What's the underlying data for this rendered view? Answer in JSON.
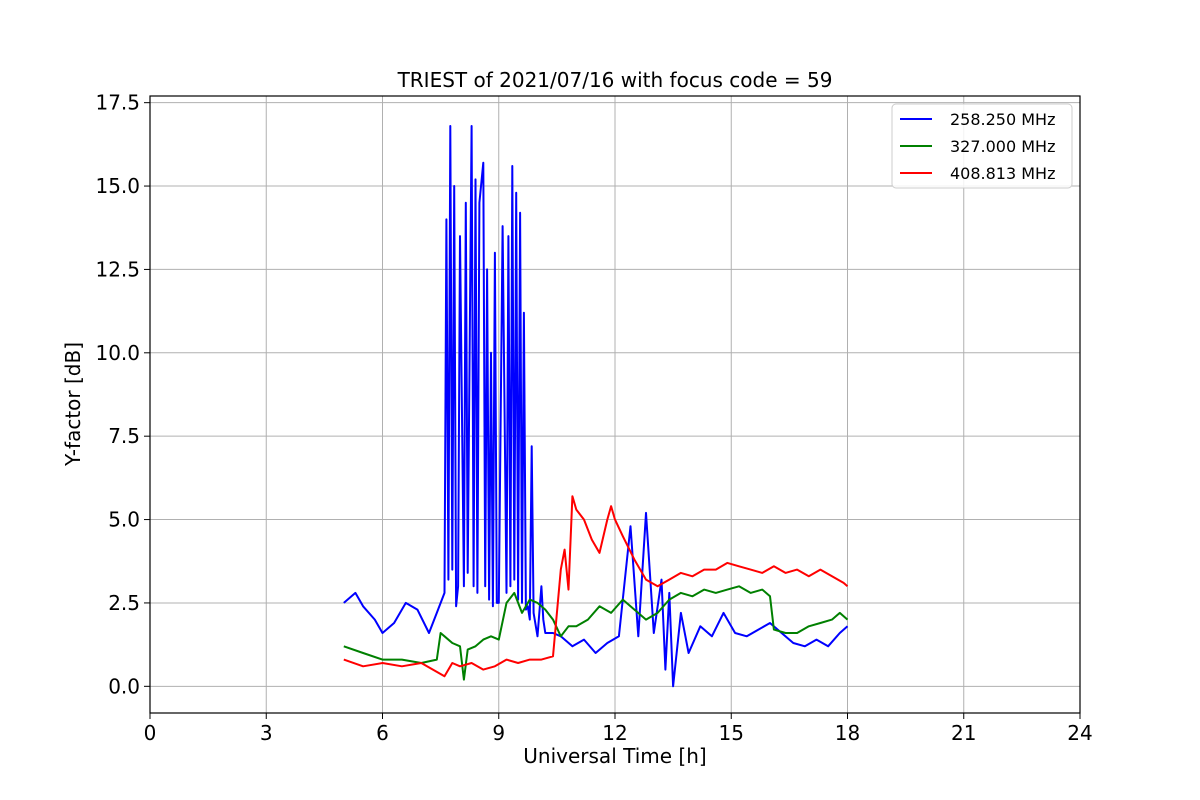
{
  "chart_data": {
    "type": "line",
    "title": "TRIEST of 2021/07/16 with focus code = 59",
    "xlabel": "Universal Time [h]",
    "ylabel": "Y-factor [dB]",
    "xlim": [
      0,
      24
    ],
    "ylim": [
      -0.8,
      17.7
    ],
    "xticks": [
      0,
      3,
      6,
      9,
      12,
      15,
      18,
      21,
      24
    ],
    "yticks": [
      0.0,
      2.5,
      5.0,
      7.5,
      10.0,
      12.5,
      15.0,
      17.5
    ],
    "xtick_labels": [
      "0",
      "3",
      "6",
      "9",
      "12",
      "15",
      "18",
      "21",
      "24"
    ],
    "ytick_labels": [
      "0.0",
      "2.5",
      "5.0",
      "7.5",
      "10.0",
      "12.5",
      "15.0",
      "17.5"
    ],
    "grid": true,
    "legend_position": "top-right",
    "series": [
      {
        "name": "258.250 MHz",
        "color": "#0000ff",
        "x": [
          5.0,
          5.3,
          5.5,
          5.8,
          6.0,
          6.3,
          6.6,
          6.9,
          7.2,
          7.4,
          7.6,
          7.65,
          7.7,
          7.75,
          7.8,
          7.85,
          7.9,
          7.95,
          8.0,
          8.1,
          8.15,
          8.2,
          8.3,
          8.35,
          8.4,
          8.45,
          8.5,
          8.6,
          8.65,
          8.7,
          8.75,
          8.8,
          8.85,
          8.9,
          8.95,
          9.0,
          9.1,
          9.2,
          9.25,
          9.3,
          9.35,
          9.4,
          9.45,
          9.5,
          9.55,
          9.6,
          9.65,
          9.7,
          9.75,
          9.8,
          9.85,
          9.9,
          10.0,
          10.1,
          10.15,
          10.2,
          10.4,
          10.6,
          10.9,
          11.2,
          11.5,
          11.8,
          12.1,
          12.4,
          12.6,
          12.8,
          13.0,
          13.2,
          13.3,
          13.4,
          13.5,
          13.7,
          13.9,
          14.2,
          14.5,
          14.8,
          15.1,
          15.4,
          15.7,
          16.0,
          16.3,
          16.6,
          16.9,
          17.2,
          17.5,
          17.8,
          18.0
        ],
        "y": [
          2.5,
          2.8,
          2.4,
          2.0,
          1.6,
          1.9,
          2.5,
          2.3,
          1.6,
          2.2,
          2.8,
          14.0,
          3.2,
          16.8,
          3.5,
          15.0,
          2.4,
          3.0,
          13.5,
          3.0,
          14.5,
          3.4,
          16.8,
          3.0,
          15.2,
          2.8,
          14.5,
          15.7,
          3.0,
          12.5,
          2.6,
          10.0,
          2.4,
          13.0,
          2.5,
          2.5,
          13.8,
          2.8,
          13.5,
          3.0,
          15.6,
          3.2,
          14.8,
          2.6,
          14.2,
          2.5,
          11.2,
          2.3,
          2.4,
          2.0,
          7.2,
          2.2,
          1.5,
          3.0,
          2.0,
          1.6,
          1.6,
          1.5,
          1.2,
          1.4,
          1.0,
          1.3,
          1.5,
          4.8,
          1.5,
          5.2,
          1.6,
          3.2,
          0.5,
          2.8,
          0.0,
          2.2,
          1.0,
          1.8,
          1.5,
          2.2,
          1.6,
          1.5,
          1.7,
          1.9,
          1.6,
          1.3,
          1.2,
          1.4,
          1.2,
          1.6,
          1.8
        ]
      },
      {
        "name": "327.000 MHz",
        "color": "#008000",
        "x": [
          5.0,
          5.5,
          6.0,
          6.5,
          7.0,
          7.4,
          7.5,
          7.6,
          7.8,
          8.0,
          8.1,
          8.2,
          8.4,
          8.6,
          8.8,
          9.0,
          9.2,
          9.4,
          9.6,
          9.8,
          10.0,
          10.2,
          10.4,
          10.6,
          10.8,
          11.0,
          11.3,
          11.6,
          11.9,
          12.2,
          12.5,
          12.8,
          13.1,
          13.4,
          13.7,
          14.0,
          14.3,
          14.6,
          14.9,
          15.2,
          15.5,
          15.8,
          16.0,
          16.1,
          16.4,
          16.7,
          17.0,
          17.3,
          17.6,
          17.8,
          18.0
        ],
        "y": [
          1.2,
          1.0,
          0.8,
          0.8,
          0.7,
          0.8,
          1.6,
          1.5,
          1.3,
          1.2,
          0.2,
          1.1,
          1.2,
          1.4,
          1.5,
          1.4,
          2.5,
          2.8,
          2.2,
          2.6,
          2.5,
          2.3,
          2.0,
          1.5,
          1.8,
          1.8,
          2.0,
          2.4,
          2.2,
          2.6,
          2.3,
          2.0,
          2.2,
          2.6,
          2.8,
          2.7,
          2.9,
          2.8,
          2.9,
          3.0,
          2.8,
          2.9,
          2.7,
          1.7,
          1.6,
          1.6,
          1.8,
          1.9,
          2.0,
          2.2,
          2.0
        ]
      },
      {
        "name": "408.813 MHz",
        "color": "#ff0000",
        "x": [
          5.0,
          5.5,
          6.0,
          6.5,
          7.0,
          7.3,
          7.6,
          7.8,
          8.0,
          8.3,
          8.6,
          8.9,
          9.2,
          9.5,
          9.8,
          10.1,
          10.4,
          10.6,
          10.7,
          10.8,
          10.9,
          11.0,
          11.2,
          11.4,
          11.6,
          11.8,
          11.9,
          12.0,
          12.2,
          12.5,
          12.8,
          13.1,
          13.4,
          13.7,
          14.0,
          14.3,
          14.6,
          14.9,
          15.2,
          15.5,
          15.8,
          16.1,
          16.4,
          16.7,
          17.0,
          17.3,
          17.6,
          17.9,
          18.0
        ],
        "y": [
          0.8,
          0.6,
          0.7,
          0.6,
          0.7,
          0.5,
          0.3,
          0.7,
          0.6,
          0.7,
          0.5,
          0.6,
          0.8,
          0.7,
          0.8,
          0.8,
          0.9,
          3.5,
          4.1,
          2.9,
          5.7,
          5.3,
          5.0,
          4.4,
          4.0,
          5.0,
          5.4,
          5.0,
          4.5,
          3.8,
          3.2,
          3.0,
          3.2,
          3.4,
          3.3,
          3.5,
          3.5,
          3.7,
          3.6,
          3.5,
          3.4,
          3.6,
          3.4,
          3.5,
          3.3,
          3.5,
          3.3,
          3.1,
          3.0
        ]
      }
    ]
  }
}
